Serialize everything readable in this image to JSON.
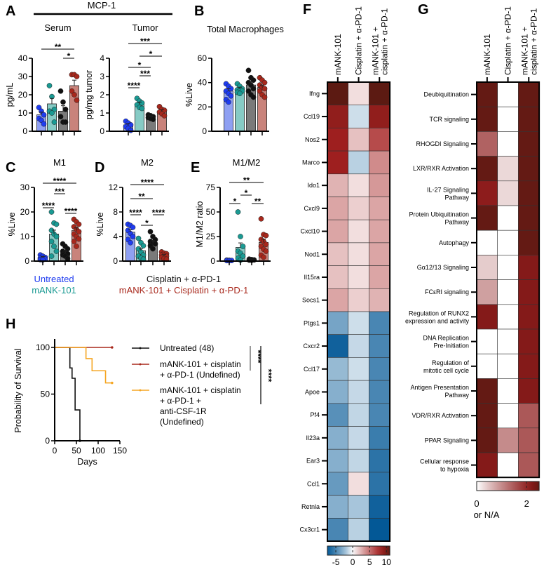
{
  "panel_labels": {
    "A": "A",
    "B": "B",
    "C": "C",
    "D": "D",
    "E": "E",
    "F": "F",
    "G": "G",
    "H": "H"
  },
  "mcp1_header": "MCP-1",
  "colors": {
    "untreated": "#1f3cf0",
    "untreated_bar": "#8fa0f2",
    "mank": "#1a9a93",
    "mank_bar": "#86cbc5",
    "cis": "#111111",
    "cis_bar": "#7a7a7a",
    "combo": "#a8281c",
    "combo_bar": "#c9837b",
    "surv_untreated": "#111111",
    "surv_combo": "#a8281c",
    "surv_csf": "#f5a623"
  },
  "group_legend": {
    "untreated": "Untreated",
    "mank": "mANK-101",
    "cis": "Cisplatin + α-PD-1",
    "combo": "mANK-101 + Cisplatin + α-PD-1"
  },
  "chart_data": [
    {
      "id": "serum",
      "type": "bar",
      "title": "Serum",
      "ylabel": "pg/mL",
      "ylim": [
        0,
        40
      ],
      "yticks": [
        "0",
        "10",
        "20",
        "30",
        "40"
      ],
      "means": [
        9,
        15,
        11,
        25
      ],
      "sem": [
        1.5,
        3,
        3,
        3
      ],
      "points": [
        [
          13,
          11,
          9,
          7,
          6,
          4
        ],
        [
          25,
          19,
          12,
          11,
          10,
          5
        ],
        [
          22,
          16,
          12,
          8,
          5,
          5
        ],
        [
          31,
          31,
          30,
          22,
          20,
          17
        ]
      ],
      "sig": [
        {
          "groups": [
            0,
            3
          ],
          "label": "**"
        },
        {
          "groups": [
            2,
            3
          ],
          "label": "*"
        }
      ]
    },
    {
      "id": "tumor",
      "type": "bar",
      "title": "Tumor",
      "ylabel": "pg/mg tumor",
      "ylim": [
        0,
        4
      ],
      "yticks": [
        "0",
        "1",
        "2",
        "3",
        "4"
      ],
      "means": [
        0.35,
        1.5,
        0.8,
        1.1
      ],
      "sem": [
        0.08,
        0.1,
        0.04,
        0.08
      ],
      "points": [
        [
          0.55,
          0.45,
          0.35,
          0.25,
          0.15,
          0.05
        ],
        [
          1.8,
          1.65,
          1.55,
          1.45,
          1.3,
          1.25
        ],
        [
          0.9,
          0.85,
          0.8,
          0.75,
          0.7,
          0.65
        ],
        [
          1.35,
          1.2,
          1.15,
          1.05,
          0.95,
          0.85
        ]
      ],
      "sig": [
        {
          "groups": [
            0,
            3
          ],
          "label": "***"
        },
        {
          "groups": [
            1,
            3
          ],
          "label": "*"
        },
        {
          "groups": [
            0,
            2
          ],
          "label": "*"
        },
        {
          "groups": [
            1,
            2
          ],
          "label": "***"
        },
        {
          "groups": [
            0,
            1
          ],
          "label": "****"
        }
      ]
    },
    {
      "id": "totmac",
      "type": "bar",
      "title": "Total Macrophages",
      "ylabel": "%Live",
      "ylim": [
        0,
        60
      ],
      "yticks": [
        "0",
        "20",
        "40",
        "60"
      ],
      "means": [
        33,
        35,
        38,
        36
      ],
      "sem": [
        2,
        1.2,
        2.5,
        2
      ],
      "points": [
        [
          39,
          37,
          35,
          33,
          31,
          29,
          26,
          24
        ],
        [
          39,
          37,
          35,
          34,
          33,
          33,
          32,
          31
        ],
        [
          50,
          44,
          42,
          40,
          38,
          35,
          33,
          30,
          28
        ],
        [
          44,
          42,
          40,
          38,
          36,
          35,
          33,
          30,
          28
        ]
      ],
      "sig": []
    },
    {
      "id": "m1",
      "type": "bar",
      "title": "M1",
      "ylabel": "%Live",
      "ylim": [
        0,
        30
      ],
      "yticks": [
        "0",
        "10",
        "20",
        "30"
      ],
      "means": [
        1.5,
        11,
        3.5,
        12.5
      ],
      "sem": [
        0.3,
        1.6,
        0.6,
        1
      ],
      "points": [
        [
          2.5,
          2,
          1.5,
          1.2,
          1,
          0.8,
          0.6,
          0.5
        ],
        [
          20,
          15.5,
          15,
          12.5,
          11,
          10,
          8,
          6,
          4,
          2
        ],
        [
          7,
          6,
          5,
          4,
          3.5,
          3,
          2.5,
          2,
          1
        ],
        [
          17,
          16,
          15,
          14,
          13,
          12,
          11,
          10,
          9,
          8,
          6
        ]
      ],
      "sig": [
        {
          "groups": [
            0,
            3
          ],
          "label": "****"
        },
        {
          "groups": [
            1,
            2
          ],
          "label": "***"
        },
        {
          "groups": [
            0,
            1
          ],
          "label": "****"
        },
        {
          "groups": [
            2,
            3
          ],
          "label": "****"
        }
      ]
    },
    {
      "id": "m2",
      "type": "bar",
      "title": "M2",
      "ylabel": "%Live",
      "ylim": [
        0,
        12
      ],
      "yticks": [
        "0",
        "4",
        "8",
        "12"
      ],
      "means": [
        4.7,
        1.7,
        3,
        0.9
      ],
      "sem": [
        0.4,
        0.35,
        0.3,
        0.15
      ],
      "points": [
        [
          6,
          5.8,
          5.5,
          5,
          4.5,
          4,
          3.5,
          3
        ],
        [
          3.7,
          3,
          2.5,
          2,
          1.5,
          1,
          0.8,
          0.5,
          0.3
        ],
        [
          4.8,
          4,
          3.5,
          3.2,
          3,
          2.8,
          2.5,
          2
        ],
        [
          1.5,
          1.3,
          1.2,
          1,
          0.9,
          0.8,
          0.6,
          0.4,
          0.3
        ]
      ],
      "sig": [
        {
          "groups": [
            0,
            3
          ],
          "label": "****"
        },
        {
          "groups": [
            0,
            2
          ],
          "label": "**"
        },
        {
          "groups": [
            0,
            1
          ],
          "label": "****"
        },
        {
          "groups": [
            2,
            3
          ],
          "label": "****"
        },
        {
          "groups": [
            1,
            2
          ],
          "label": "*"
        }
      ]
    },
    {
      "id": "ratio",
      "type": "bar",
      "title": "M1/M2",
      "ylabel": "M1/M2 ratio",
      "ylim": [
        0,
        75
      ],
      "yticks": [
        "0",
        "25",
        "50",
        "75"
      ],
      "means": [
        0.5,
        14,
        1,
        19
      ],
      "sem": [
        0.1,
        4.5,
        0.2,
        3.5
      ],
      "points": [
        [
          1,
          0.8,
          0.6,
          0.5,
          0.4
        ],
        [
          50,
          25,
          15,
          10,
          8,
          5,
          3,
          1
        ],
        [
          2,
          1.5,
          1.2,
          1,
          0.8
        ],
        [
          43,
          27,
          26,
          22,
          20,
          17,
          15,
          12,
          10,
          6,
          4
        ]
      ],
      "sig": [
        {
          "groups": [
            0,
            3
          ],
          "label": "**"
        },
        {
          "groups": [
            1,
            2
          ],
          "label": "*"
        },
        {
          "groups": [
            0,
            1
          ],
          "label": "*"
        },
        {
          "groups": [
            2,
            3
          ],
          "label": "**"
        }
      ]
    },
    {
      "id": "heatF",
      "type": "heatmap",
      "columns": [
        "mANK-101",
        "Cisplatin + α-PD-1",
        "mANK-101 +|cisplatin + α-PD-1"
      ],
      "rows": [
        "Ifng",
        "Ccl19",
        "Nos2",
        "Marco",
        "Ido1",
        "Cxcl9",
        "Cxcl10",
        "Nod1",
        "Il15ra",
        "Socs1",
        "Ptgs1",
        "Cxcr2",
        "Ccl17",
        "Apoe",
        "Pf4",
        "Il23a",
        "Ear3",
        "Ccl1",
        "Retnla",
        "Cx3cr1"
      ],
      "values": [
        [
          11,
          1,
          11
        ],
        [
          9,
          -1,
          9
        ],
        [
          8.5,
          2,
          6.5
        ],
        [
          8.5,
          -1.5,
          4
        ],
        [
          2.5,
          1,
          3.5
        ],
        [
          3,
          1.5,
          3
        ],
        [
          3,
          1,
          3
        ],
        [
          2,
          1,
          3
        ],
        [
          2,
          1,
          3
        ],
        [
          3,
          1.5,
          2.5
        ],
        [
          -3.5,
          -1,
          -5
        ],
        [
          -7,
          -1.2,
          -5
        ],
        [
          -2.5,
          -1,
          -5
        ],
        [
          -3,
          -1.2,
          -5
        ],
        [
          -4.5,
          -1.3,
          -5
        ],
        [
          -3,
          -1.2,
          -5.5
        ],
        [
          -3,
          -1.3,
          -6
        ],
        [
          -4,
          1,
          -6
        ],
        [
          -3,
          -2,
          -7
        ],
        [
          -5,
          -1.5,
          -7.5
        ]
      ],
      "colorbar": {
        "range": [
          -7.5,
          11
        ],
        "ticks": [
          "-5",
          "0",
          "5",
          "10"
        ],
        "tick_values": [
          -5,
          0,
          5,
          10
        ]
      }
    },
    {
      "id": "heatG",
      "type": "heatmap",
      "columns": [
        "mANK-101",
        "Cisplatin + α-PD-1",
        "mANK-101 +|cisplatin + α-PD-1"
      ],
      "rows": [
        "Deubiquitination",
        "TCR signaling",
        "RHOGDI Signaling",
        "LXR/RXR Activation",
        "IL-27 Signaling|Pathway",
        "Protein Ubiquitination|Pathway",
        "Autophagy",
        "Gα12/13 Signaling",
        "FCεRI signaling",
        "Regulation of RUNX2|expression and activity",
        "DNA Replication|Pre-Initiation",
        "Regulation of|mitotic cell cycle",
        "Antigen Presentation|Pathway",
        "VDR/RXR Activation",
        "PPAR Signaling",
        "Cellular response|to hypoxia"
      ],
      "values": [
        [
          2.5,
          0,
          2.5
        ],
        [
          2.5,
          0,
          2.5
        ],
        [
          1.4,
          0,
          2.5
        ],
        [
          2.5,
          0.3,
          2.5
        ],
        [
          2.1,
          0.3,
          2.5
        ],
        [
          2.5,
          0,
          2.5
        ],
        [
          0,
          0,
          2.5
        ],
        [
          0.4,
          0,
          2.2
        ],
        [
          0.8,
          0,
          2.2
        ],
        [
          2.2,
          0,
          2.2
        ],
        [
          0,
          0,
          2.2
        ],
        [
          0,
          0,
          2.2
        ],
        [
          2.5,
          0,
          2.2
        ],
        [
          2.5,
          0,
          1.5
        ],
        [
          2.5,
          1,
          1.5
        ],
        [
          2.2,
          0,
          1.5
        ]
      ],
      "colorbar": {
        "range": [
          0,
          2.5
        ],
        "ticks": [
          "0",
          "2"
        ],
        "tick_values": [
          0,
          2
        ],
        "note": "or N/A"
      }
    },
    {
      "id": "survival",
      "type": "line",
      "ylabel": "Probability of Survival",
      "xlabel": "Days",
      "xlim": [
        0,
        150
      ],
      "ylim": [
        0,
        100
      ],
      "xticks": [
        "0",
        "50",
        "100",
        "150"
      ],
      "yticks": [
        "0",
        "50",
        "100"
      ],
      "series": [
        {
          "name": "Untreated (48)",
          "color_key": "surv_untreated",
          "steps": [
            [
              0,
              100
            ],
            [
              35,
              100
            ],
            [
              35,
              78
            ],
            [
              40,
              78
            ],
            [
              40,
              67
            ],
            [
              47,
              67
            ],
            [
              47,
              33
            ],
            [
              58,
              33
            ],
            [
              58,
              0
            ]
          ]
        },
        {
          "name": "mANK-101 + cisplatin|+ α-PD-1  (Undefined)",
          "color_key": "surv_combo",
          "steps": [
            [
              0,
              100
            ],
            [
              132,
              100
            ]
          ]
        },
        {
          "name": "mANK-101 + cisplatin|+ α-PD-1 +|anti-CSF-1R|(Undefined)",
          "color_key": "surv_csf",
          "steps": [
            [
              0,
              100
            ],
            [
              72,
              100
            ],
            [
              72,
              88
            ],
            [
              86,
              88
            ],
            [
              86,
              75
            ],
            [
              117,
              75
            ],
            [
              117,
              62
            ],
            [
              132,
              62
            ]
          ]
        }
      ],
      "sig": [
        "****",
        "****"
      ]
    }
  ]
}
